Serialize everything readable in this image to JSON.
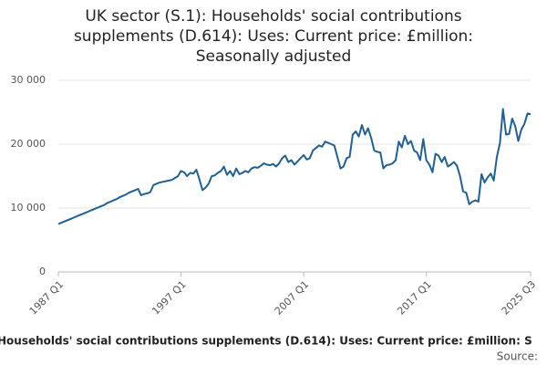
{
  "chart_data": {
    "type": "line",
    "title": [
      "UK sector (S.1): Households' social contributions",
      "supplements (D.614): Uses: Current price: £million:",
      "Seasonally adjusted"
    ],
    "footer": "Households' social contributions supplements (D.614): Uses: Current price: £million: S",
    "source": "Source:",
    "categories": [
      "1987 Q1",
      null,
      null,
      null,
      null,
      null,
      null,
      null,
      null,
      null,
      null,
      null,
      null,
      null,
      null,
      null,
      null,
      null,
      null,
      null,
      null,
      null,
      null,
      null,
      null,
      null,
      null,
      null,
      null,
      null,
      null,
      null,
      null,
      null,
      null,
      null,
      null,
      null,
      null,
      null,
      "1997 Q1",
      null,
      null,
      null,
      null,
      null,
      null,
      null,
      null,
      null,
      null,
      null,
      null,
      null,
      null,
      null,
      null,
      null,
      null,
      null,
      null,
      null,
      null,
      null,
      null,
      null,
      null,
      null,
      null,
      null,
      null,
      null,
      null,
      null,
      null,
      null,
      null,
      null,
      null,
      null,
      "2007 Q1",
      null,
      null,
      null,
      null,
      null,
      null,
      null,
      null,
      null,
      null,
      null,
      null,
      null,
      null,
      null,
      null,
      null,
      null,
      null,
      null,
      null,
      null,
      null,
      null,
      null,
      null,
      null,
      null,
      null,
      null,
      null,
      null,
      null,
      null,
      null,
      null,
      null,
      null,
      null,
      "2017 Q1",
      null,
      null,
      null,
      null,
      null,
      null,
      null,
      null,
      null,
      null,
      null,
      null,
      null,
      null,
      null,
      null,
      null,
      null,
      null,
      null,
      null,
      null,
      null,
      null,
      null,
      null,
      null,
      null,
      null,
      null,
      null,
      null,
      null,
      "2025 Q3"
    ],
    "series": [
      {
        "name": "Households' social contributions supplements",
        "color": "#206095",
        "values": [
          7500,
          7700,
          7900,
          8100,
          8300,
          8500,
          8700,
          8900,
          9100,
          9300,
          9500,
          9700,
          9900,
          10100,
          10300,
          10500,
          10800,
          11000,
          11200,
          11400,
          11700,
          11900,
          12100,
          12400,
          12600,
          12800,
          13000,
          12000,
          12200,
          12300,
          12500,
          13600,
          13800,
          14000,
          14100,
          14200,
          14300,
          14400,
          14700,
          15000,
          15800,
          15600,
          15000,
          15500,
          15400,
          16000,
          14500,
          12800,
          13200,
          13800,
          15000,
          15100,
          15500,
          15800,
          16500,
          15200,
          15800,
          15000,
          16200,
          15300,
          15500,
          15800,
          15600,
          16200,
          16400,
          16300,
          16600,
          17000,
          16800,
          16700,
          16900,
          16500,
          17000,
          17800,
          18200,
          17200,
          17500,
          16800,
          17300,
          17800,
          18300,
          17600,
          17800,
          19000,
          19400,
          19800,
          19600,
          20400,
          20200,
          20000,
          19800,
          18000,
          16200,
          16500,
          17800,
          18000,
          21500,
          22000,
          21200,
          23000,
          21500,
          22500,
          21000,
          19000,
          18800,
          18700,
          16200,
          16700,
          16800,
          17000,
          17500,
          20400,
          19500,
          21300,
          20000,
          20500,
          19000,
          18700,
          17500,
          20800,
          17500,
          16800,
          15600,
          18500,
          18200,
          17200,
          18000,
          16500,
          16800,
          17200,
          16600,
          15000,
          12600,
          12400,
          10600,
          11000,
          11200,
          11000,
          15300,
          14000,
          14800,
          15400,
          14300,
          18000,
          20200,
          25500,
          21500,
          21600,
          24000,
          22800,
          20500,
          22300,
          23200,
          24800,
          24700
        ]
      }
    ],
    "ylim": [
      0,
      30000
    ],
    "yticks": [
      0,
      {
        "value": 10000,
        "label": "10 000"
      },
      {
        "value": 20000,
        "label": "20 000"
      },
      {
        "value": 30000,
        "label": "30 000"
      }
    ],
    "grid": true
  }
}
